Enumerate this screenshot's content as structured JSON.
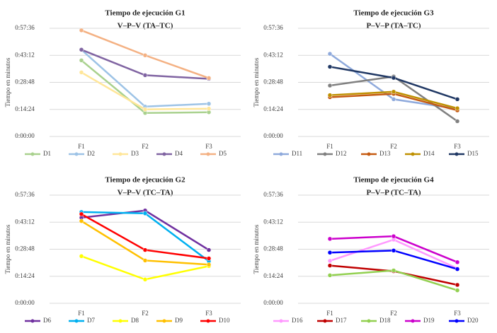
{
  "chart_data": [
    {
      "type": "line",
      "title": "Tiempo de ejecución G1",
      "subtitle": "V–P–V   (TA–TC)",
      "y_label": "Tiempo  en minutos",
      "categories": [
        "F1",
        "F2",
        "F3"
      ],
      "ylim": [
        0,
        57.6
      ],
      "yticks": [
        {
          "value": 0,
          "label": "0:00:00"
        },
        {
          "value": 14.4,
          "label": "0:14:24"
        },
        {
          "value": 28.8,
          "label": "0:28:48"
        },
        {
          "value": 43.2,
          "label": "0:43:12"
        },
        {
          "value": 57.6,
          "label": "0:57:36"
        }
      ],
      "grid": true,
      "legend": "bottom",
      "series": [
        {
          "name": "D1",
          "color": "#a9d18e",
          "values": [
            40.5,
            12.5,
            12.9
          ]
        },
        {
          "name": "D2",
          "color": "#9dc3e6",
          "values": [
            46.2,
            15.9,
            17.4
          ]
        },
        {
          "name": "D3",
          "color": "#ffe699",
          "values": [
            34.1,
            14.4,
            14.8
          ]
        },
        {
          "name": "D4",
          "color": "#8064a2",
          "values": [
            46.2,
            32.6,
            30.7
          ]
        },
        {
          "name": "D5",
          "color": "#f4b183",
          "values": [
            56.5,
            43.2,
            31.1
          ]
        }
      ]
    },
    {
      "type": "line",
      "title": "Tiempo de ejecución G3",
      "subtitle": "P–V–P   (TA–TC)",
      "y_label": "Tiempo  en minutos",
      "categories": [
        "F1",
        "F2",
        "F3"
      ],
      "ylim": [
        0,
        57.6
      ],
      "yticks": [
        {
          "value": 0,
          "label": "0:00:00"
        },
        {
          "value": 14.4,
          "label": "0:14:24"
        },
        {
          "value": 28.8,
          "label": "0:28:48"
        },
        {
          "value": 43.2,
          "label": "0:43:12"
        },
        {
          "value": 57.6,
          "label": "0:57:36"
        }
      ],
      "grid": true,
      "legend": "bottom",
      "series": [
        {
          "name": "D11",
          "color": "#8faadc",
          "values": [
            44.0,
            19.8,
            14.7
          ]
        },
        {
          "name": "D12",
          "color": "#808080",
          "values": [
            27.1,
            31.9,
            8.1
          ]
        },
        {
          "name": "D13",
          "color": "#c55a11",
          "values": [
            20.9,
            22.7,
            13.9
          ]
        },
        {
          "name": "D14",
          "color": "#bf9000",
          "values": [
            22.0,
            23.8,
            15.0
          ]
        },
        {
          "name": "D15",
          "color": "#203864",
          "values": [
            37.1,
            31.2,
            19.8
          ]
        }
      ]
    },
    {
      "type": "line",
      "title": "Tiempo de ejecución G2",
      "subtitle": "V–P–V   (TC–TA)",
      "y_label": "Tiempo  en minutos",
      "categories": [
        "F1",
        "F2",
        "F3"
      ],
      "ylim": [
        0,
        57.6
      ],
      "yticks": [
        {
          "value": 0,
          "label": "0:00:00"
        },
        {
          "value": 14.4,
          "label": "0:14:24"
        },
        {
          "value": 28.8,
          "label": "0:28:48"
        },
        {
          "value": 43.2,
          "label": "0:43:12"
        },
        {
          "value": 57.6,
          "label": "0:57:36"
        }
      ],
      "grid": true,
      "legend": "bottom",
      "series": [
        {
          "name": "D6",
          "color": "#7030a0",
          "values": [
            45.6,
            49.4,
            28.4
          ]
        },
        {
          "name": "D7",
          "color": "#00b0f0",
          "values": [
            48.6,
            47.9,
            22.4
          ]
        },
        {
          "name": "D8",
          "color": "#ffff00",
          "values": [
            25.1,
            12.7,
            19.8
          ]
        },
        {
          "name": "D9",
          "color": "#ffc000",
          "values": [
            43.8,
            22.8,
            20.6
          ]
        },
        {
          "name": "D10",
          "color": "#ff0000",
          "values": [
            47.5,
            28.4,
            23.9
          ]
        }
      ]
    },
    {
      "type": "line",
      "title": "Tiempo de ejecución G4",
      "subtitle": "P–V–P   (TC–TA)",
      "y_label": "Tiempo  en minutos",
      "categories": [
        "F1",
        "F2",
        "F3"
      ],
      "ylim": [
        0,
        57.6
      ],
      "yticks": [
        {
          "value": 0,
          "label": "0:00:00"
        },
        {
          "value": 14.4,
          "label": "0:14:24"
        },
        {
          "value": 28.8,
          "label": "0:28:48"
        },
        {
          "value": 43.2,
          "label": "0:43:12"
        },
        {
          "value": 57.6,
          "label": "0:57:36"
        }
      ],
      "grid": true,
      "legend": "bottom",
      "series": [
        {
          "name": "D16",
          "color": "#ff99ff",
          "values": [
            22.6,
            33.9,
            18.6
          ]
        },
        {
          "name": "D17",
          "color": "#c00000",
          "values": [
            20.1,
            17.1,
            9.8
          ]
        },
        {
          "name": "D18",
          "color": "#92d050",
          "values": [
            14.9,
            17.5,
            6.9
          ]
        },
        {
          "name": "D19",
          "color": "#cc00cc",
          "values": [
            34.3,
            35.7,
            21.9
          ]
        },
        {
          "name": "D20",
          "color": "#0000ff",
          "values": [
            27.0,
            28.1,
            18.2
          ]
        }
      ]
    }
  ]
}
